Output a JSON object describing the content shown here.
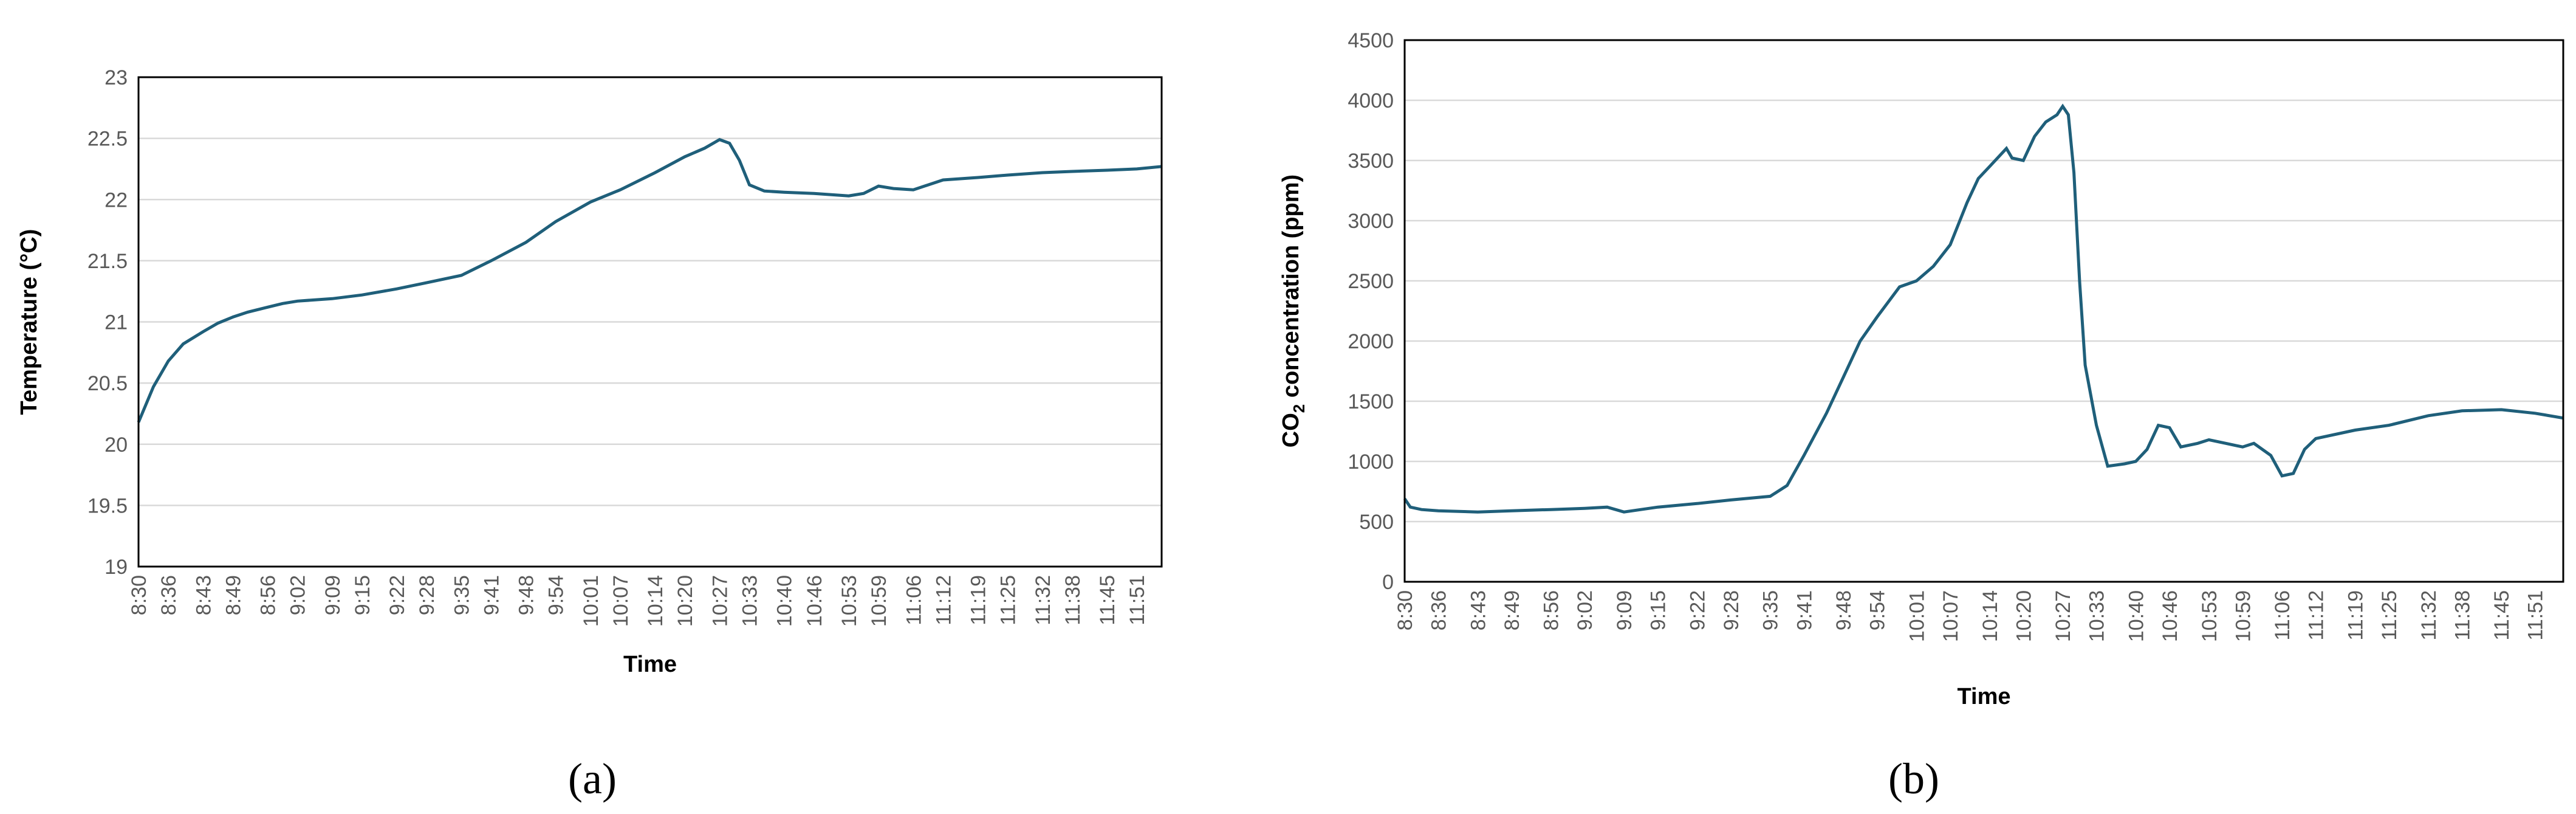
{
  "chart_data": [
    {
      "type": "line",
      "panel_label": "(a)",
      "xlabel": "Time",
      "ylabel": "Temperature (°C)",
      "ylim": [
        19,
        23
      ],
      "yticks": [
        "19",
        "19.5",
        "20",
        "20.5",
        "21",
        "21.5",
        "22",
        "22.5",
        "23"
      ],
      "grid": true,
      "line_color": "#1f5f7a",
      "categories": [
        "8:30",
        "8:36",
        "8:43",
        "8:49",
        "8:56",
        "9:02",
        "9:09",
        "9:15",
        "9:22",
        "9:28",
        "9:35",
        "9:41",
        "9:48",
        "9:54",
        "10:01",
        "10:07",
        "10:14",
        "10:20",
        "10:27",
        "10:33",
        "10:40",
        "10:46",
        "10:53",
        "10:59",
        "11:06",
        "11:12",
        "11:19",
        "11:25",
        "11:32",
        "11:38",
        "11:45",
        "11:51"
      ],
      "series": [
        {
          "x": [
            "8:30",
            "8:33",
            "8:36",
            "8:39",
            "8:43",
            "8:46",
            "8:49",
            "8:52",
            "8:56",
            "8:59",
            "9:02",
            "9:09",
            "9:15",
            "9:22",
            "9:28",
            "9:35",
            "9:41",
            "9:48",
            "9:54",
            "10:01",
            "10:07",
            "10:14",
            "10:20",
            "10:24",
            "10:27",
            "10:29",
            "10:31",
            "10:33",
            "10:36",
            "10:40",
            "10:46",
            "10:53",
            "10:56",
            "10:59",
            "11:02",
            "11:06",
            "11:12",
            "11:19",
            "11:25",
            "11:32",
            "11:38",
            "11:45",
            "11:51",
            "11:56"
          ],
          "values": [
            20.18,
            20.47,
            20.68,
            20.82,
            20.92,
            20.99,
            21.04,
            21.08,
            21.12,
            21.15,
            21.17,
            21.19,
            21.22,
            21.27,
            21.32,
            21.38,
            21.5,
            21.65,
            21.82,
            21.98,
            22.08,
            22.22,
            22.35,
            22.42,
            22.49,
            22.46,
            22.32,
            22.12,
            22.07,
            22.06,
            22.05,
            22.03,
            22.05,
            22.11,
            22.09,
            22.08,
            22.16,
            22.18,
            22.2,
            22.22,
            22.23,
            22.24,
            22.25,
            22.27
          ]
        }
      ]
    },
    {
      "type": "line",
      "panel_label": "(b)",
      "xlabel": "Time",
      "ylabel_main": "CO",
      "ylabel_sub": "2",
      "ylabel_rest": " concentration (ppm)",
      "ylim": [
        0,
        4500
      ],
      "yticks": [
        "0",
        "500",
        "1000",
        "1500",
        "2000",
        "2500",
        "3000",
        "3500",
        "4000",
        "4500"
      ],
      "grid": true,
      "line_color": "#1f5f7a",
      "categories": [
        "8:30",
        "8:36",
        "8:43",
        "8:49",
        "8:56",
        "9:02",
        "9:09",
        "9:15",
        "9:22",
        "9:28",
        "9:35",
        "9:41",
        "9:48",
        "9:54",
        "10:01",
        "10:07",
        "10:14",
        "10:20",
        "10:27",
        "10:33",
        "10:40",
        "10:46",
        "10:53",
        "10:59",
        "11:06",
        "11:12",
        "11:19",
        "11:25",
        "11:32",
        "11:38",
        "11:45",
        "11:51"
      ],
      "series": [
        {
          "x": [
            "8:30",
            "8:31",
            "8:33",
            "8:36",
            "8:43",
            "8:49",
            "8:56",
            "9:02",
            "9:06",
            "9:09",
            "9:12",
            "9:15",
            "9:22",
            "9:28",
            "9:35",
            "9:38",
            "9:41",
            "9:45",
            "9:48",
            "9:51",
            "9:54",
            "9:58",
            "10:01",
            "10:04",
            "10:07",
            "10:10",
            "10:12",
            "10:14",
            "10:17",
            "10:18",
            "10:20",
            "10:22",
            "10:24",
            "10:26",
            "10:27",
            "10:28",
            "10:29",
            "10:30",
            "10:31",
            "10:33",
            "10:35",
            "10:38",
            "10:40",
            "10:42",
            "10:44",
            "10:46",
            "10:48",
            "10:51",
            "10:53",
            "10:56",
            "10:59",
            "11:01",
            "11:04",
            "11:06",
            "11:08",
            "11:10",
            "11:12",
            "11:19",
            "11:25",
            "11:32",
            "11:38",
            "11:45",
            "11:51",
            "11:56"
          ],
          "values": [
            690,
            620,
            600,
            590,
            580,
            590,
            600,
            610,
            620,
            580,
            600,
            620,
            650,
            680,
            710,
            800,
            1050,
            1400,
            1700,
            2000,
            2200,
            2450,
            2500,
            2620,
            2800,
            3150,
            3350,
            3450,
            3600,
            3520,
            3500,
            3700,
            3820,
            3880,
            3950,
            3880,
            3400,
            2500,
            1800,
            1300,
            960,
            980,
            1000,
            1100,
            1300,
            1280,
            1120,
            1150,
            1180,
            1150,
            1120,
            1150,
            1050,
            880,
            900,
            1100,
            1190,
            1260,
            1300,
            1380,
            1420,
            1430,
            1400,
            1360
          ]
        }
      ]
    }
  ]
}
